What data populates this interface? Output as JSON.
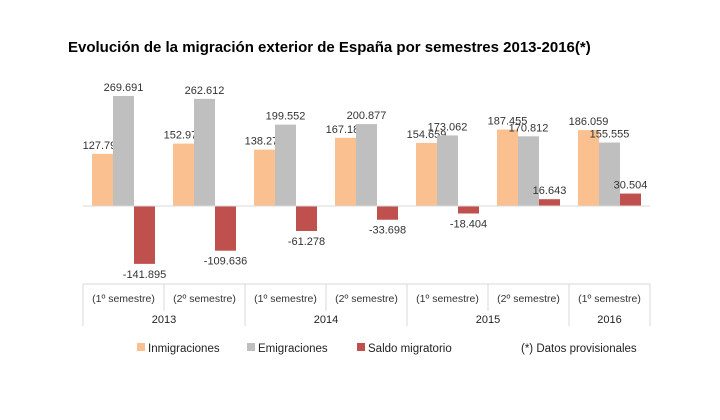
{
  "title": "Evolución de la migración exterior de España por semestres 2013-2016(*)",
  "note": "(*) Datos provisionales",
  "chart_data": {
    "type": "bar",
    "categories": [
      {
        "label": "(1º semestre)",
        "group": "2013"
      },
      {
        "label": "(2º semestre)",
        "group": "2013"
      },
      {
        "label": "(1º semestre)",
        "group": "2014"
      },
      {
        "label": "(2º semestre)",
        "group": "2014"
      },
      {
        "label": "(1º semestre)",
        "group": "2015"
      },
      {
        "label": "(2º semestre)",
        "group": "2015"
      },
      {
        "label": "(1º semestre)",
        "group": "2016"
      }
    ],
    "groups": [
      "2013",
      "2014",
      "2015",
      "2016"
    ],
    "series": [
      {
        "name": "Inmigraciones",
        "color": "#fac090",
        "values": [
          127796,
          152976,
          138274,
          167180,
          154659,
          187455,
          186059
        ],
        "labels": [
          "127.796",
          "152.976",
          "138.274",
          "167.180",
          "154.659",
          "187.455",
          "186.059"
        ]
      },
      {
        "name": "Emigraciones",
        "color": "#bfbfbf",
        "values": [
          269691,
          262612,
          199552,
          200877,
          173062,
          170812,
          155555
        ],
        "labels": [
          "269.691",
          "262.612",
          "199.552",
          "200.877",
          "173.062",
          "170.812",
          "155.555"
        ]
      },
      {
        "name": "Saldo migratorio",
        "color": "#c0504d",
        "values": [
          -141895,
          -109636,
          -61278,
          -33698,
          -18404,
          16643,
          30504
        ],
        "labels": [
          "-141.895",
          "-109.636",
          "-61.278",
          "-33.698",
          "-18.404",
          "16.643",
          "30.504"
        ]
      }
    ],
    "legend_position": "bottom"
  }
}
